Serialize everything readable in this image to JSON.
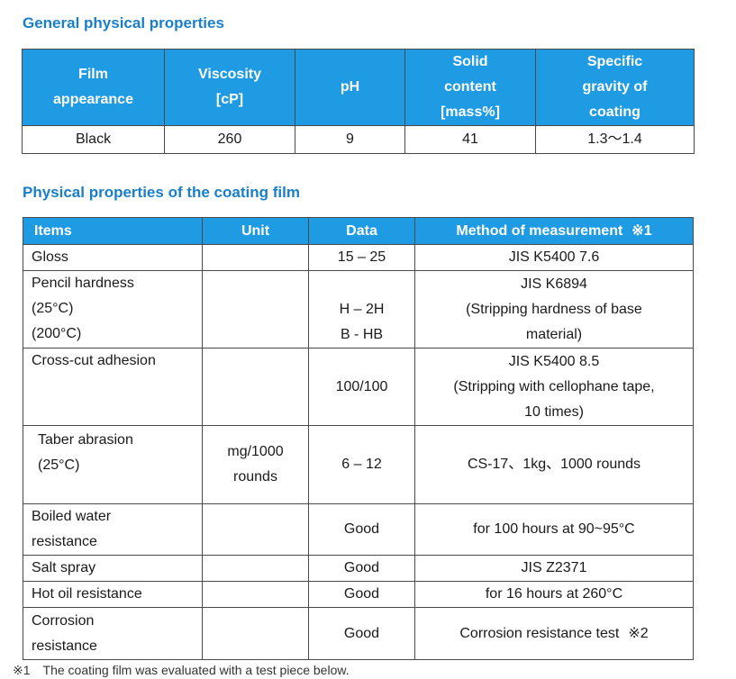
{
  "general": {
    "title": "General physical properties",
    "headers": [
      "Film\nappearance",
      "Viscosity\n[cP]",
      "pH",
      "Solid\ncontent\n[mass%]",
      "Specific\ngravity of\ncoating"
    ],
    "row": [
      "Black",
      "260",
      "9",
      "41",
      "1.3〜1.4"
    ]
  },
  "coating": {
    "title": "Physical properties of the coating film",
    "headers": {
      "items": "Items",
      "unit": "Unit",
      "data": "Data",
      "method": "Method of measurement",
      "method_mark": "※1"
    },
    "rows": [
      {
        "item": "Gloss",
        "unit": "",
        "data": "15 – 25",
        "method": "JIS K5400 7.6"
      },
      {
        "item": "Pencil hardness\n(25°C)\n(200°C)",
        "unit": "",
        "data": "H – 2H\nB - HB",
        "method": "JIS K6894\n(Stripping hardness of base\nmaterial)"
      },
      {
        "item": "Cross-cut adhesion",
        "unit": "",
        "data": "100/100",
        "method": "JIS K5400 8.5\n(Stripping with cellophane tape,\n10 times)"
      },
      {
        "item": "Taber abrasion\n(25°C)",
        "unit": "mg/1000\nrounds",
        "data": "6 – 12",
        "method": "CS-17、1kg、1000 rounds"
      },
      {
        "item": "Boiled water\nresistance",
        "unit": "",
        "data": "Good",
        "method": "for 100 hours at 90~95°C"
      },
      {
        "item": "Salt spray",
        "unit": "",
        "data": "Good",
        "method": "JIS Z2371"
      },
      {
        "item": "Hot oil resistance",
        "unit": "",
        "data": "Good",
        "method": "for 16 hours at 260°C"
      },
      {
        "item": "Corrosion\nresistance",
        "unit": "",
        "data": "Good",
        "method": "Corrosion resistance test",
        "method_mark": "※2"
      }
    ]
  },
  "footnote": "※1　The coating film was evaluated with a test piece below."
}
